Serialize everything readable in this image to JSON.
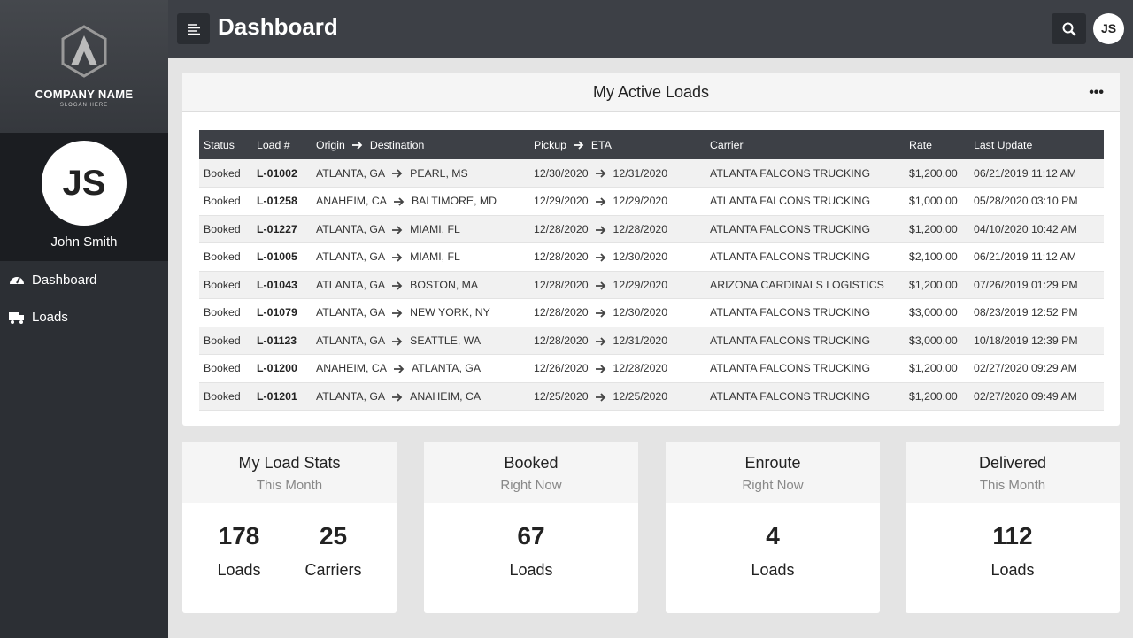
{
  "sidebar": {
    "company": "COMPANY NAME",
    "slogan": "SLOGAN HERE",
    "initials": "JS",
    "user": "John Smith",
    "nav": [
      "Dashboard",
      "Loads"
    ]
  },
  "header": {
    "title": "Dashboard",
    "avatar": "JS"
  },
  "loads": {
    "title": "My Active Loads",
    "columns": [
      "Status",
      "Load #",
      "Origin",
      "Destination",
      "Pickup",
      "ETA",
      "Carrier",
      "Rate",
      "Last Update"
    ],
    "rows": [
      [
        "Booked",
        "L-01002",
        "ATLANTA, GA",
        "PEARL, MS",
        "12/30/2020",
        "12/31/2020",
        "ATLANTA FALCONS TRUCKING",
        "$1,200.00",
        "06/21/2019 11:12 AM"
      ],
      [
        "Booked",
        "L-01258",
        "ANAHEIM, CA",
        "BALTIMORE, MD",
        "12/29/2020",
        "12/29/2020",
        "ATLANTA FALCONS TRUCKING",
        "$1,000.00",
        "05/28/2020 03:10 PM"
      ],
      [
        "Booked",
        "L-01227",
        "ATLANTA, GA",
        "MIAMI, FL",
        "12/28/2020",
        "12/28/2020",
        "ATLANTA FALCONS TRUCKING",
        "$1,200.00",
        "04/10/2020 10:42 AM"
      ],
      [
        "Booked",
        "L-01005",
        "ATLANTA, GA",
        "MIAMI, FL",
        "12/28/2020",
        "12/30/2020",
        "ATLANTA FALCONS TRUCKING",
        "$2,100.00",
        "06/21/2019 11:12 AM"
      ],
      [
        "Booked",
        "L-01043",
        "ATLANTA, GA",
        "BOSTON, MA",
        "12/28/2020",
        "12/29/2020",
        "ARIZONA CARDINALS LOGISTICS",
        "$1,200.00",
        "07/26/2019 01:29 PM"
      ],
      [
        "Booked",
        "L-01079",
        "ATLANTA, GA",
        "NEW YORK, NY",
        "12/28/2020",
        "12/30/2020",
        "ATLANTA FALCONS TRUCKING",
        "$3,000.00",
        "08/23/2019 12:52 PM"
      ],
      [
        "Booked",
        "L-01123",
        "ATLANTA, GA",
        "SEATTLE, WA",
        "12/28/2020",
        "12/31/2020",
        "ATLANTA FALCONS TRUCKING",
        "$3,000.00",
        "10/18/2019 12:39 PM"
      ],
      [
        "Booked",
        "L-01200",
        "ANAHEIM, CA",
        "ATLANTA, GA",
        "12/26/2020",
        "12/28/2020",
        "ATLANTA FALCONS TRUCKING",
        "$1,200.00",
        "02/27/2020 09:29 AM"
      ],
      [
        "Booked",
        "L-01201",
        "ATLANTA, GA",
        "ANAHEIM, CA",
        "12/25/2020",
        "12/25/2020",
        "ATLANTA FALCONS TRUCKING",
        "$1,200.00",
        "02/27/2020 09:49 AM"
      ]
    ]
  },
  "stats": [
    {
      "title": "My Load Stats",
      "subtitle": "This Month",
      "items": [
        {
          "value": "178",
          "label": "Loads"
        },
        {
          "value": "25",
          "label": "Carriers"
        }
      ]
    },
    {
      "title": "Booked",
      "subtitle": "Right Now",
      "items": [
        {
          "value": "67",
          "label": "Loads"
        }
      ]
    },
    {
      "title": "Enroute",
      "subtitle": "Right Now",
      "items": [
        {
          "value": "4",
          "label": "Loads"
        }
      ]
    },
    {
      "title": "Delivered",
      "subtitle": "This Month",
      "items": [
        {
          "value": "112",
          "label": "Loads"
        }
      ]
    }
  ]
}
